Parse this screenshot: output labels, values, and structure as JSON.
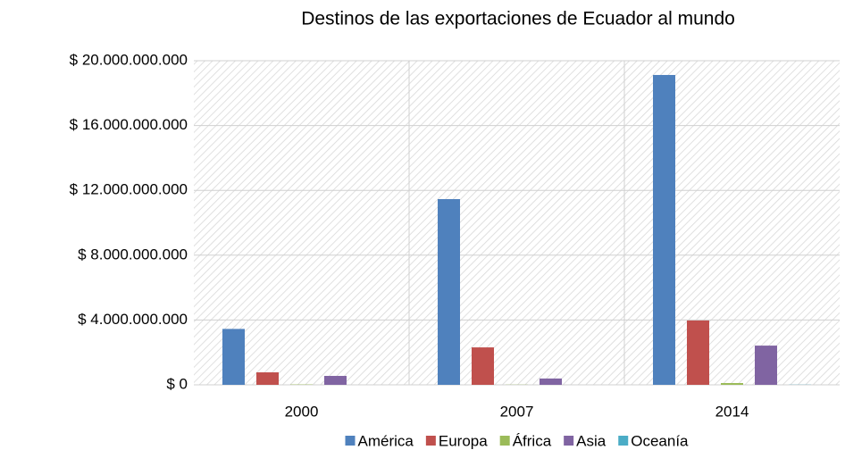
{
  "chart_data": {
    "type": "bar",
    "title": "Destinos de las exportaciones de Ecuador al mundo",
    "categories": [
      "2000",
      "2007",
      "2014"
    ],
    "series": [
      {
        "name": "América",
        "color": "#4f81bd",
        "values": [
          3450000000,
          11460000000,
          19120000000
        ]
      },
      {
        "name": "Europa",
        "color": "#c0504d",
        "values": [
          770000000,
          2310000000,
          3970000000
        ]
      },
      {
        "name": "África",
        "color": "#9bbb59",
        "values": [
          20000000,
          10000000,
          110000000
        ]
      },
      {
        "name": "Asia",
        "color": "#8064a2",
        "values": [
          550000000,
          390000000,
          2420000000
        ]
      },
      {
        "name": "Oceanía",
        "color": "#4bacc6",
        "values": [
          0,
          0,
          10000000
        ]
      }
    ],
    "ylim": [
      0,
      20000000000
    ],
    "yticks": [
      {
        "value": 0,
        "label": "$ 0"
      },
      {
        "value": 4000000000,
        "label": "$ 4.000.000.000"
      },
      {
        "value": 8000000000,
        "label": "$ 8.000.000.000"
      },
      {
        "value": 12000000000,
        "label": "$ 12.000.000.000"
      },
      {
        "value": 16000000000,
        "label": "$ 16.000.000.000"
      },
      {
        "value": 20000000000,
        "label": "$ 20.000.000.000"
      }
    ],
    "grid": true,
    "legend": "bottom"
  }
}
